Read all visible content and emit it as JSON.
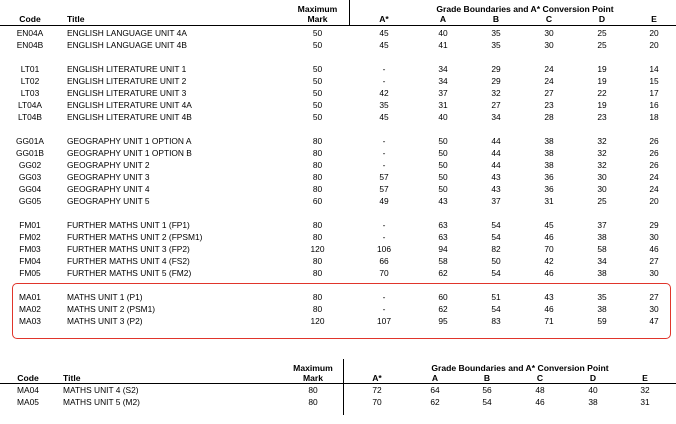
{
  "top_table": {
    "headers": {
      "code": "Code",
      "title": "Title",
      "max_line1": "Maximum",
      "max_line2": "Mark",
      "group": "Grade Boundaries and A* Conversion Point",
      "astar": "A*",
      "a": "A",
      "b": "B",
      "c": "C",
      "d": "D",
      "e": "E"
    },
    "rows": [
      {
        "code": "EN04A",
        "title": "ENGLISH LANGUAGE UNIT 4A",
        "max": "50",
        "astar": "45",
        "a": "40",
        "b": "35",
        "c": "30",
        "d": "25",
        "e": "20"
      },
      {
        "code": "EN04B",
        "title": "ENGLISH LANGUAGE UNIT 4B",
        "max": "50",
        "astar": "45",
        "a": "41",
        "b": "35",
        "c": "30",
        "d": "25",
        "e": "20"
      },
      {
        "code": "LT01",
        "title": "ENGLISH LITERATURE UNIT 1",
        "max": "50",
        "astar": "-",
        "a": "34",
        "b": "29",
        "c": "24",
        "d": "19",
        "e": "14"
      },
      {
        "code": "LT02",
        "title": "ENGLISH LITERATURE UNIT 2",
        "max": "50",
        "astar": "-",
        "a": "34",
        "b": "29",
        "c": "24",
        "d": "19",
        "e": "15"
      },
      {
        "code": "LT03",
        "title": "ENGLISH LITERATURE UNIT 3",
        "max": "50",
        "astar": "42",
        "a": "37",
        "b": "32",
        "c": "27",
        "d": "22",
        "e": "17"
      },
      {
        "code": "LT04A",
        "title": "ENGLISH LITERATURE UNIT 4A",
        "max": "50",
        "astar": "35",
        "a": "31",
        "b": "27",
        "c": "23",
        "d": "19",
        "e": "16"
      },
      {
        "code": "LT04B",
        "title": "ENGLISH LITERATURE UNIT 4B",
        "max": "50",
        "astar": "45",
        "a": "40",
        "b": "34",
        "c": "28",
        "d": "23",
        "e": "18"
      },
      {
        "code": "GG01A",
        "title": "GEOGRAPHY UNIT 1 OPTION A",
        "max": "80",
        "astar": "-",
        "a": "50",
        "b": "44",
        "c": "38",
        "d": "32",
        "e": "26"
      },
      {
        "code": "GG01B",
        "title": "GEOGRAPHY UNIT 1 OPTION B",
        "max": "80",
        "astar": "-",
        "a": "50",
        "b": "44",
        "c": "38",
        "d": "32",
        "e": "26"
      },
      {
        "code": "GG02",
        "title": "GEOGRAPHY UNIT 2",
        "max": "80",
        "astar": "-",
        "a": "50",
        "b": "44",
        "c": "38",
        "d": "32",
        "e": "26"
      },
      {
        "code": "GG03",
        "title": "GEOGRAPHY UNIT 3",
        "max": "80",
        "astar": "57",
        "a": "50",
        "b": "43",
        "c": "36",
        "d": "30",
        "e": "24"
      },
      {
        "code": "GG04",
        "title": "GEOGRAPHY UNIT 4",
        "max": "80",
        "astar": "57",
        "a": "50",
        "b": "43",
        "c": "36",
        "d": "30",
        "e": "24"
      },
      {
        "code": "GG05",
        "title": "GEOGRAPHY UNIT 5",
        "max": "60",
        "astar": "49",
        "a": "43",
        "b": "37",
        "c": "31",
        "d": "25",
        "e": "20"
      },
      {
        "code": "FM01",
        "title": "FURTHER MATHS UNIT 1 (FP1)",
        "max": "80",
        "astar": "-",
        "a": "63",
        "b": "54",
        "c": "45",
        "d": "37",
        "e": "29"
      },
      {
        "code": "FM02",
        "title": "FURTHER MATHS UNIT 2 (FPSM1)",
        "max": "80",
        "astar": "-",
        "a": "63",
        "b": "54",
        "c": "46",
        "d": "38",
        "e": "30"
      },
      {
        "code": "FM03",
        "title": "FURTHER MATHS UNIT 3 (FP2)",
        "max": "120",
        "astar": "106",
        "a": "94",
        "b": "82",
        "c": "70",
        "d": "58",
        "e": "46"
      },
      {
        "code": "FM04",
        "title": "FURTHER MATHS UNIT 4 (FS2)",
        "max": "80",
        "astar": "66",
        "a": "58",
        "b": "50",
        "c": "42",
        "d": "34",
        "e": "27"
      },
      {
        "code": "FM05",
        "title": "FURTHER MATHS UNIT 5 (FM2)",
        "max": "80",
        "astar": "70",
        "a": "62",
        "b": "54",
        "c": "46",
        "d": "38",
        "e": "30"
      },
      {
        "code": "MA01",
        "title": "MATHS UNIT 1 (P1)",
        "max": "80",
        "astar": "-",
        "a": "60",
        "b": "51",
        "c": "43",
        "d": "35",
        "e": "27"
      },
      {
        "code": "MA02",
        "title": "MATHS UNIT 2 (PSM1)",
        "max": "80",
        "astar": "-",
        "a": "62",
        "b": "54",
        "c": "46",
        "d": "38",
        "e": "30"
      },
      {
        "code": "MA03",
        "title": "MATHS UNIT 3 (P2)",
        "max": "120",
        "astar": "107",
        "a": "95",
        "b": "83",
        "c": "71",
        "d": "59",
        "e": "47"
      }
    ]
  },
  "bottom_table": {
    "headers": {
      "code": "Code",
      "title": "Title",
      "max_line1": "Maximum",
      "max_line2": "Mark",
      "group": "Grade Boundaries and A* Conversion Point",
      "astar": "A*",
      "a": "A",
      "b": "B",
      "c": "C",
      "d": "D",
      "e": "E"
    },
    "rows": [
      {
        "code": "MA04",
        "title": "MATHS UNIT 4 (S2)",
        "max": "80",
        "astar": "72",
        "a": "64",
        "b": "56",
        "c": "48",
        "d": "40",
        "e": "32"
      },
      {
        "code": "MA05",
        "title": "MATHS UNIT 5 (M2)",
        "max": "80",
        "astar": "70",
        "a": "62",
        "b": "54",
        "c": "46",
        "d": "38",
        "e": "31"
      }
    ]
  },
  "highlight": {
    "color": "#e0352b",
    "rows": [
      "MA01",
      "MA02",
      "MA03"
    ]
  }
}
